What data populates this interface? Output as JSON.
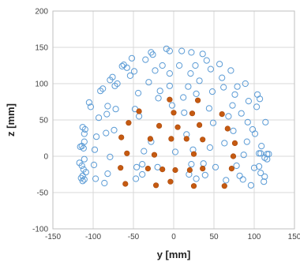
{
  "chart_data": {
    "type": "scatter",
    "xlabel": "y [mm]",
    "ylabel": "z [mm]",
    "xlim": [
      -150,
      150
    ],
    "ylim": [
      -100,
      200
    ],
    "xticks": [
      -150,
      -100,
      -50,
      0,
      50,
      100,
      150
    ],
    "yticks": [
      -100,
      -50,
      0,
      50,
      100,
      150,
      200
    ],
    "grid": true,
    "legend": "none",
    "series": [
      {
        "marker": "open-circle",
        "color": "#5b9bd5",
        "points": [
          [
            -113,
            -27
          ],
          [
            -117,
            -9
          ],
          [
            -115,
            -30
          ],
          [
            -111,
            -32
          ],
          [
            -112,
            -18
          ],
          [
            -116,
            13
          ],
          [
            -114,
            14
          ],
          [
            -112,
            11
          ],
          [
            -111,
            20
          ],
          [
            -113,
            -34
          ],
          [
            -111,
            -4
          ],
          [
            -114,
            -13
          ],
          [
            -110,
            37
          ],
          [
            -111,
            31
          ],
          [
            -113,
            40
          ],
          [
            -109,
            -22
          ],
          [
            -105,
            74
          ],
          [
            -103,
            68
          ],
          [
            -99,
            -12
          ],
          [
            -97,
            -31
          ],
          [
            -98,
            9
          ],
          [
            -96,
            27
          ],
          [
            -93,
            53
          ],
          [
            -91,
            90
          ],
          [
            -88,
            93
          ],
          [
            -86,
            -37
          ],
          [
            -84,
            32
          ],
          [
            -83,
            58
          ],
          [
            -82,
            -24
          ],
          [
            -82,
            69
          ],
          [
            -79,
            -1
          ],
          [
            -79,
            105
          ],
          [
            -76,
            109
          ],
          [
            -74,
            36
          ],
          [
            -73,
            97
          ],
          [
            -72,
            65
          ],
          [
            -70,
            100
          ],
          [
            -64,
            124
          ],
          [
            -62,
            126
          ],
          [
            -58,
            122
          ],
          [
            -54,
            111
          ],
          [
            -52,
            135
          ],
          [
            -48,
            65
          ],
          [
            -49,
            117
          ],
          [
            -47,
            -31
          ],
          [
            -46,
            -15
          ],
          [
            -44,
            87
          ],
          [
            -43,
            55
          ],
          [
            -39,
            -25
          ],
          [
            -39,
            -11
          ],
          [
            -37,
            7
          ],
          [
            -35,
            133
          ],
          [
            -31,
            102
          ],
          [
            -28,
            143
          ],
          [
            -28,
            20
          ],
          [
            -26,
            140
          ],
          [
            -23,
            118
          ],
          [
            -20,
            -15
          ],
          [
            -19,
            80
          ],
          [
            -17,
            90
          ],
          [
            -14,
            125
          ],
          [
            -9,
            148
          ],
          [
            -5,
            97
          ],
          [
            -5,
            114
          ],
          [
            -5,
            145
          ],
          [
            -2,
            70
          ],
          [
            2,
            6
          ],
          [
            7,
            125
          ],
          [
            10,
            145
          ],
          [
            12,
            81
          ],
          [
            13,
            60
          ],
          [
            16,
            30
          ],
          [
            18,
            96
          ],
          [
            19,
            -25
          ],
          [
            21,
            114
          ],
          [
            22,
            -11
          ],
          [
            22,
            143
          ],
          [
            24,
            9
          ],
          [
            27,
            125
          ],
          [
            28,
            -31
          ],
          [
            28,
            86
          ],
          [
            32,
            104
          ],
          [
            36,
            141
          ],
          [
            37,
            -10
          ],
          [
            39,
            -26
          ],
          [
            41,
            132
          ],
          [
            44,
            66
          ],
          [
            45,
            12
          ],
          [
            46,
            120
          ],
          [
            48,
            89
          ],
          [
            49,
            46
          ],
          [
            52,
            -15
          ],
          [
            57,
            127
          ],
          [
            60,
            108
          ],
          [
            62,
            95
          ],
          [
            63,
            18
          ],
          [
            65,
            -33
          ],
          [
            68,
            55
          ],
          [
            71,
            118
          ],
          [
            73,
            70
          ],
          [
            74,
            35
          ],
          [
            76,
            85
          ],
          [
            78,
            -13
          ],
          [
            79,
            96
          ],
          [
            82,
            -27
          ],
          [
            84,
            59
          ],
          [
            86,
            -32
          ],
          [
            87,
            2
          ],
          [
            89,
            100
          ],
          [
            91,
            20
          ],
          [
            92,
            47
          ],
          [
            93,
            76
          ],
          [
            96,
            -40
          ],
          [
            98,
            37
          ],
          [
            100,
            -16
          ],
          [
            101,
            31
          ],
          [
            103,
            68
          ],
          [
            104,
            85
          ],
          [
            106,
            -14
          ],
          [
            106,
            4
          ],
          [
            107,
            79
          ],
          [
            108,
            4
          ],
          [
            108,
            -23
          ],
          [
            109,
            14
          ],
          [
            112,
            -35
          ],
          [
            113,
            -2
          ],
          [
            113,
            -28
          ],
          [
            116,
            -4
          ],
          [
            116,
            3
          ],
          [
            118,
            3
          ],
          [
            114,
            47
          ]
        ]
      },
      {
        "marker": "filled-circle",
        "color": "#c55a11",
        "points": [
          [
            -66,
            -16
          ],
          [
            -65,
            26
          ],
          [
            -60,
            -38
          ],
          [
            -58,
            4
          ],
          [
            -56,
            46
          ],
          [
            -43,
            62
          ],
          [
            -32,
            -17
          ],
          [
            -29,
            24
          ],
          [
            -24,
            2
          ],
          [
            -22,
            -40
          ],
          [
            -18,
            42
          ],
          [
            -14,
            -18
          ],
          [
            -5,
            78
          ],
          [
            -4,
            -35
          ],
          [
            -3,
            24
          ],
          [
            0,
            60
          ],
          [
            2,
            -19
          ],
          [
            5,
            40
          ],
          [
            16,
            24
          ],
          [
            20,
            -19
          ],
          [
            23,
            59
          ],
          [
            25,
            -41
          ],
          [
            25,
            3
          ],
          [
            30,
            77
          ],
          [
            32,
            43
          ],
          [
            36,
            -17
          ],
          [
            36,
            23
          ],
          [
            60,
            58
          ],
          [
            63,
            -41
          ],
          [
            67,
            38
          ],
          [
            72,
            -17
          ],
          [
            74,
            0
          ],
          [
            76,
            18
          ]
        ]
      }
    ]
  }
}
